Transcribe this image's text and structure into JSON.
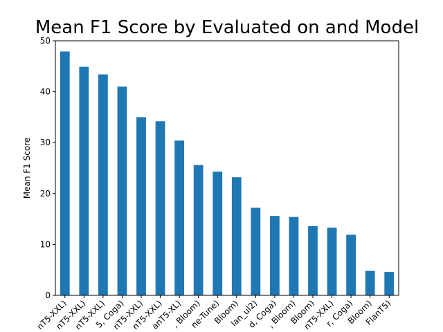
{
  "chart_data": {
    "type": "bar",
    "title": "Mean F1 Score by Evaluated on and Model",
    "xlabel": "",
    "ylabel": "Mean F1 Score",
    "ylim": [
      0,
      50
    ],
    "yticks": [
      0,
      10,
      20,
      30,
      40,
      50
    ],
    "grid": false,
    "categories": [
      "nT5-XXL)",
      "nT5-XXL)",
      "nT5-XXL)",
      "5, Coga)",
      "nT5-XXL)",
      "nT5-XXL)",
      "anT5-XL)",
      ", Bloom)",
      "ne-Tune)",
      "Bloom)",
      "lan_ul2)",
      "d, Coga)",
      ", Bloom)",
      "Bloom)",
      "nT5-XXL)",
      "r, Coga)",
      "Bloom)",
      "FlanT5)"
    ],
    "values": [
      47.9,
      44.9,
      43.4,
      41.0,
      35.0,
      34.2,
      30.4,
      25.6,
      24.3,
      23.2,
      17.2,
      15.6,
      15.4,
      13.6,
      13.3,
      11.9,
      4.8,
      4.6
    ],
    "bar_color": "#1f77b4"
  }
}
